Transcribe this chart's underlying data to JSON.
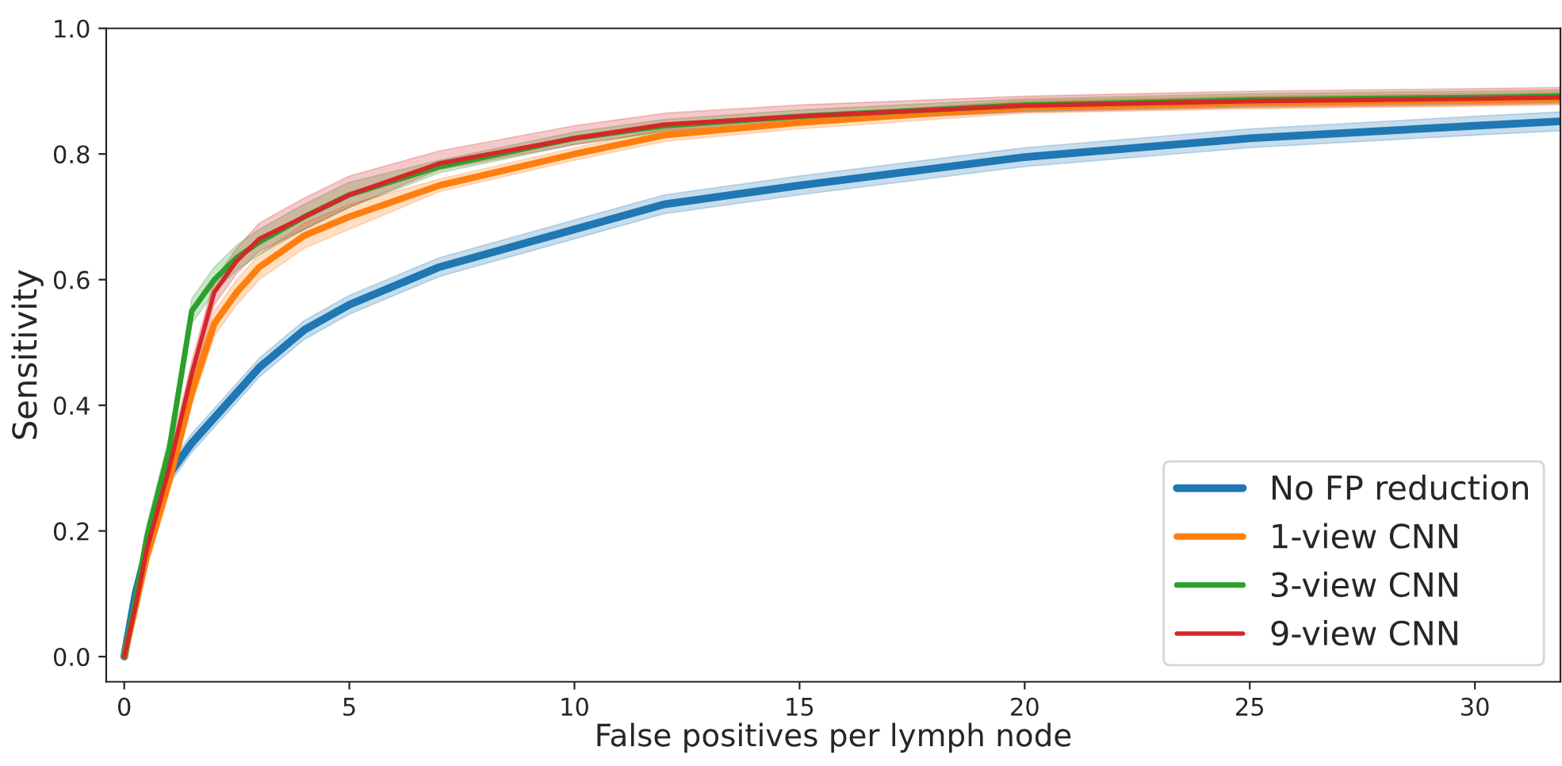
{
  "chart_data": {
    "type": "line",
    "xlabel": "False positives per lymph node",
    "ylabel": "Sensitivity",
    "x": [
      0,
      0.25,
      0.5,
      1,
      1.5,
      2,
      2.5,
      3,
      4,
      5,
      7,
      10,
      12,
      15,
      20,
      25,
      30,
      31.9
    ],
    "series": [
      {
        "name": "No FP reduction",
        "color": "#1f77b4",
        "values": [
          0,
          0.1,
          0.17,
          0.29,
          0.34,
          0.38,
          0.42,
          0.46,
          0.52,
          0.56,
          0.62,
          0.68,
          0.72,
          0.75,
          0.795,
          0.825,
          0.845,
          0.852
        ],
        "lower": [
          0,
          0.085,
          0.155,
          0.275,
          0.325,
          0.365,
          0.405,
          0.445,
          0.505,
          0.545,
          0.605,
          0.665,
          0.705,
          0.735,
          0.78,
          0.81,
          0.83,
          0.837
        ],
        "upper": [
          0,
          0.115,
          0.185,
          0.305,
          0.355,
          0.395,
          0.435,
          0.475,
          0.535,
          0.575,
          0.635,
          0.695,
          0.735,
          0.765,
          0.81,
          0.84,
          0.86,
          0.867
        ]
      },
      {
        "name": "1-view CNN",
        "color": "#ff7f0e",
        "values": [
          0,
          0.08,
          0.16,
          0.28,
          0.42,
          0.53,
          0.58,
          0.62,
          0.67,
          0.7,
          0.75,
          0.8,
          0.83,
          0.85,
          0.875,
          0.882,
          0.886,
          0.888
        ],
        "lower": [
          0,
          0.06,
          0.14,
          0.26,
          0.4,
          0.51,
          0.56,
          0.6,
          0.65,
          0.68,
          0.74,
          0.79,
          0.82,
          0.84,
          0.865,
          0.872,
          0.876,
          0.878
        ],
        "upper": [
          0,
          0.1,
          0.18,
          0.3,
          0.44,
          0.55,
          0.6,
          0.64,
          0.69,
          0.72,
          0.76,
          0.81,
          0.84,
          0.86,
          0.885,
          0.892,
          0.896,
          0.898
        ]
      },
      {
        "name": "3-view CNN",
        "color": "#2ca02c",
        "values": [
          0,
          0.09,
          0.19,
          0.33,
          0.55,
          0.6,
          0.635,
          0.66,
          0.7,
          0.735,
          0.78,
          0.825,
          0.845,
          0.86,
          0.878,
          0.886,
          0.89,
          0.892
        ],
        "lower": [
          0,
          0.07,
          0.17,
          0.31,
          0.53,
          0.58,
          0.615,
          0.64,
          0.68,
          0.715,
          0.77,
          0.815,
          0.835,
          0.85,
          0.868,
          0.876,
          0.88,
          0.882
        ],
        "upper": [
          0,
          0.11,
          0.21,
          0.35,
          0.57,
          0.62,
          0.655,
          0.68,
          0.72,
          0.755,
          0.79,
          0.835,
          0.855,
          0.87,
          0.888,
          0.896,
          0.9,
          0.902
        ]
      },
      {
        "name": "9-view CNN",
        "color": "#d62728",
        "values": [
          0,
          0.08,
          0.17,
          0.3,
          0.45,
          0.58,
          0.63,
          0.665,
          0.7,
          0.735,
          0.785,
          0.825,
          0.847,
          0.86,
          0.877,
          0.884,
          0.888,
          0.89
        ],
        "lower": [
          0,
          0.06,
          0.15,
          0.28,
          0.43,
          0.56,
          0.61,
          0.645,
          0.68,
          0.715,
          0.775,
          0.815,
          0.837,
          0.85,
          0.867,
          0.874,
          0.878,
          0.88
        ],
        "upper": [
          0,
          0.1,
          0.19,
          0.32,
          0.47,
          0.6,
          0.65,
          0.69,
          0.73,
          0.765,
          0.805,
          0.845,
          0.865,
          0.878,
          0.892,
          0.9,
          0.904,
          0.906
        ]
      }
    ],
    "xlim": [
      -0.4,
      31.9
    ],
    "ylim": [
      -0.04,
      1.0
    ],
    "xticks": [
      0,
      5,
      10,
      15,
      20,
      25,
      30
    ],
    "yticks": [
      {
        "value": 0,
        "label": "0.0"
      },
      {
        "value": 0.2,
        "label": "0.2"
      },
      {
        "value": 0.4,
        "label": "0.4"
      },
      {
        "value": 0.6,
        "label": "0.6"
      },
      {
        "value": 0.8,
        "label": "0.8"
      },
      {
        "value": 1,
        "label": "1.0"
      }
    ],
    "grid": false,
    "legend": "bottom right",
    "marker": "none",
    "line_style": "solid"
  }
}
